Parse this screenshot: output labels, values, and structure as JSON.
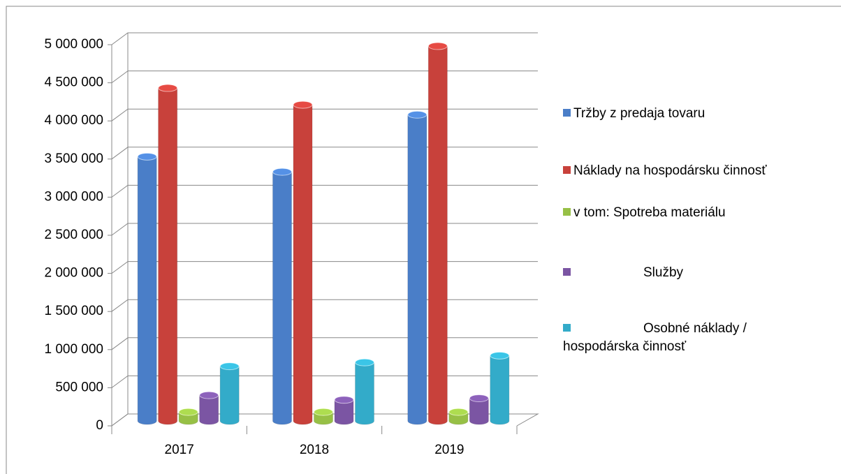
{
  "chart_data": {
    "type": "bar3d",
    "categories": [
      "2017",
      "2018",
      "2019"
    ],
    "series": [
      {
        "name": "Tržby z predaja tovaru",
        "color": "#4a7ec8",
        "values": [
          3550000,
          3350000,
          4100000
        ]
      },
      {
        "name": "Náklady na hospodársku činnosť",
        "color": "#c8413b",
        "values": [
          4450000,
          4230000,
          5000000
        ]
      },
      {
        "name": "v tom:  Spotreba materiálu",
        "color": "#97c046",
        "values": [
          200000,
          200000,
          200000
        ]
      },
      {
        "name": "Služby",
        "color": "#7b55a3",
        "values": [
          420000,
          360000,
          380000
        ]
      },
      {
        "name": "Osobné náklady / hospodárska činnosť",
        "color": "#33abc9",
        "values": [
          800000,
          850000,
          940000
        ]
      }
    ],
    "ylim": [
      0,
      5000000
    ],
    "yticks": [
      0,
      {
        "value": 500000,
        "label": "500 000"
      },
      {
        "value": 1000000,
        "label": "1 000 000"
      },
      {
        "value": 1500000,
        "label": "1 500 000"
      },
      {
        "value": 2000000,
        "label": "2 000 000"
      },
      {
        "value": 2500000,
        "label": "2 500 000"
      },
      {
        "value": 3000000,
        "label": "3 000 000"
      },
      {
        "value": 3500000,
        "label": "3 500 000"
      },
      {
        "value": 4000000,
        "label": "4 000 000"
      },
      {
        "value": 4500000,
        "label": "4 500 000"
      },
      {
        "value": 5000000,
        "label": "5 000 000"
      }
    ],
    "grid": true,
    "legend": "right"
  }
}
